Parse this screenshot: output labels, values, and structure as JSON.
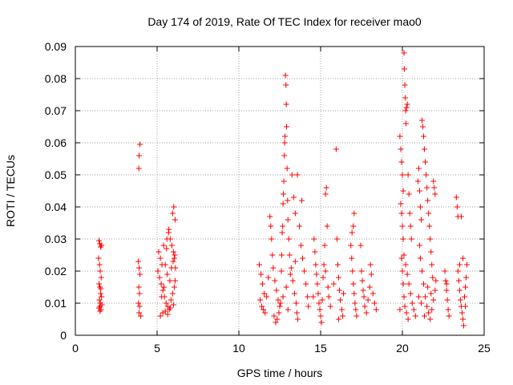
{
  "chart_data": {
    "type": "scatter",
    "title": "Day 174 of 2019, Rate Of TEC Index for receiver mao0",
    "xlabel": "GPS time / hours",
    "ylabel": "ROTI / TECUs",
    "xlim": [
      0,
      25
    ],
    "ylim": [
      0,
      0.09
    ],
    "grid": true,
    "x_ticks": [
      0,
      5,
      10,
      15,
      20,
      25
    ],
    "x_tick_labels": [
      "0",
      "5",
      "10",
      "15",
      "20",
      "25"
    ],
    "y_ticks": [
      0,
      0.01,
      0.02,
      0.03,
      0.04,
      0.05,
      0.06,
      0.07,
      0.08,
      0.09
    ],
    "y_tick_labels": [
      "0",
      "0.01",
      "0.02",
      "0.03",
      "0.04",
      "0.05",
      "0.06",
      "0.07",
      "0.08",
      "0.09"
    ],
    "marker": "+",
    "marker_color": "#ff0000",
    "series": [
      {
        "name": "ROTI",
        "points": [
          [
            1.45,
            0.0295
          ],
          [
            1.5,
            0.0285
          ],
          [
            1.55,
            0.0275
          ],
          [
            1.6,
            0.028
          ],
          [
            1.42,
            0.024
          ],
          [
            1.48,
            0.022
          ],
          [
            1.52,
            0.02
          ],
          [
            1.58,
            0.018
          ],
          [
            1.45,
            0.016
          ],
          [
            1.5,
            0.015
          ],
          [
            1.55,
            0.013
          ],
          [
            1.6,
            0.012
          ],
          [
            1.47,
            0.011
          ],
          [
            1.53,
            0.01
          ],
          [
            1.5,
            0.009
          ],
          [
            1.57,
            0.008
          ],
          [
            1.44,
            0.0085
          ],
          [
            1.62,
            0.0095
          ],
          [
            1.51,
            0.0075
          ],
          [
            1.56,
            0.0145
          ],
          [
            3.85,
            0.023
          ],
          [
            3.9,
            0.021
          ],
          [
            3.95,
            0.019
          ],
          [
            3.88,
            0.015
          ],
          [
            3.92,
            0.013
          ],
          [
            3.86,
            0.01
          ],
          [
            3.93,
            0.009
          ],
          [
            3.9,
            0.007
          ],
          [
            4.0,
            0.006
          ],
          [
            3.95,
            0.0595
          ],
          [
            3.9,
            0.056
          ],
          [
            3.88,
            0.052
          ],
          [
            5.1,
            0.026
          ],
          [
            5.2,
            0.024
          ],
          [
            5.3,
            0.022
          ],
          [
            5.05,
            0.02
          ],
          [
            5.15,
            0.018
          ],
          [
            5.25,
            0.016
          ],
          [
            5.35,
            0.014
          ],
          [
            5.45,
            0.012
          ],
          [
            5.55,
            0.01
          ],
          [
            5.65,
            0.009
          ],
          [
            5.75,
            0.008
          ],
          [
            5.85,
            0.011
          ],
          [
            5.95,
            0.013
          ],
          [
            6.05,
            0.015
          ],
          [
            6.1,
            0.017
          ],
          [
            5.4,
            0.028
          ],
          [
            5.6,
            0.03
          ],
          [
            5.7,
            0.032
          ],
          [
            5.8,
            0.03
          ],
          [
            5.9,
            0.028
          ],
          [
            6.0,
            0.026
          ],
          [
            6.05,
            0.024
          ],
          [
            5.5,
            0.022
          ],
          [
            5.62,
            0.019
          ],
          [
            5.78,
            0.017
          ],
          [
            5.88,
            0.021
          ],
          [
            5.98,
            0.023
          ],
          [
            6.08,
            0.025
          ],
          [
            5.72,
            0.033
          ],
          [
            5.95,
            0.038
          ],
          [
            6.02,
            0.04
          ],
          [
            6.1,
            0.036
          ],
          [
            5.2,
            0.006
          ],
          [
            5.35,
            0.007
          ],
          [
            5.5,
            0.0075
          ],
          [
            5.65,
            0.0065
          ],
          [
            5.8,
            0.0085
          ],
          [
            6.0,
            0.0095
          ],
          [
            5.28,
            0.012
          ],
          [
            5.42,
            0.015
          ],
          [
            5.58,
            0.027
          ],
          [
            6.12,
            0.021
          ],
          [
            11.25,
            0.022
          ],
          [
            11.35,
            0.019
          ],
          [
            11.45,
            0.016
          ],
          [
            11.55,
            0.013
          ],
          [
            11.3,
            0.011
          ],
          [
            11.4,
            0.009
          ],
          [
            11.5,
            0.008
          ],
          [
            11.6,
            0.007
          ],
          [
            11.7,
            0.012
          ],
          [
            11.8,
            0.018
          ],
          [
            11.9,
            0.037
          ],
          [
            11.95,
            0.034
          ],
          [
            12.0,
            0.03
          ],
          [
            12.05,
            0.025
          ],
          [
            12.1,
            0.021
          ],
          [
            12.2,
            0.017
          ],
          [
            12.3,
            0.014
          ],
          [
            12.4,
            0.011
          ],
          [
            12.5,
            0.009
          ],
          [
            12.15,
            0.006
          ],
          [
            12.25,
            0.004
          ],
          [
            12.35,
            0.005
          ],
          [
            12.45,
            0.007
          ],
          [
            12.55,
            0.01
          ],
          [
            12.6,
            0.02
          ],
          [
            12.62,
            0.025
          ],
          [
            12.65,
            0.032
          ],
          [
            12.68,
            0.034
          ],
          [
            12.7,
            0.041
          ],
          [
            12.72,
            0.044
          ],
          [
            12.75,
            0.048
          ],
          [
            12.78,
            0.056
          ],
          [
            12.8,
            0.06
          ],
          [
            12.82,
            0.062
          ],
          [
            12.85,
            0.081
          ],
          [
            12.88,
            0.078
          ],
          [
            12.9,
            0.072
          ],
          [
            12.92,
            0.065
          ],
          [
            12.95,
            0.052
          ],
          [
            12.98,
            0.042
          ],
          [
            13.0,
            0.036
          ],
          [
            13.05,
            0.03
          ],
          [
            13.1,
            0.025
          ],
          [
            13.2,
            0.021
          ],
          [
            13.3,
            0.017
          ],
          [
            13.4,
            0.013
          ],
          [
            13.5,
            0.01
          ],
          [
            13.55,
            0.007
          ],
          [
            13.6,
            0.005
          ],
          [
            13.25,
            0.05
          ],
          [
            13.35,
            0.043
          ],
          [
            13.45,
            0.038
          ],
          [
            13.58,
            0.05
          ],
          [
            13.7,
            0.034
          ],
          [
            13.8,
            0.028
          ],
          [
            13.9,
            0.024
          ],
          [
            14.0,
            0.02
          ],
          [
            14.1,
            0.016
          ],
          [
            14.2,
            0.012
          ],
          [
            14.25,
            0.009
          ],
          [
            13.85,
            0.042
          ],
          [
            13.15,
            0.019
          ],
          [
            12.9,
            0.015
          ],
          [
            12.7,
            0.012
          ],
          [
            13.0,
            0.008
          ],
          [
            13.45,
            0.023
          ],
          [
            14.6,
            0.03
          ],
          [
            14.65,
            0.026
          ],
          [
            14.7,
            0.022
          ],
          [
            14.75,
            0.019
          ],
          [
            14.8,
            0.016
          ],
          [
            14.85,
            0.013
          ],
          [
            14.9,
            0.01
          ],
          [
            14.95,
            0.008
          ],
          [
            15.0,
            0.006
          ],
          [
            15.05,
            0.004
          ],
          [
            15.1,
            0.011
          ],
          [
            15.15,
            0.018
          ],
          [
            15.2,
            0.022
          ],
          [
            15.25,
            0.028
          ],
          [
            15.3,
            0.044
          ],
          [
            15.35,
            0.046
          ],
          [
            15.4,
            0.034
          ],
          [
            15.3,
            0.02
          ],
          [
            14.55,
            0.012
          ],
          [
            15.45,
            0.015
          ],
          [
            15.5,
            0.012
          ],
          [
            15.6,
            0.009
          ],
          [
            15.95,
            0.058
          ],
          [
            16.0,
            0.03
          ],
          [
            16.05,
            0.022
          ],
          [
            16.1,
            0.018
          ],
          [
            16.15,
            0.014
          ],
          [
            16.2,
            0.011
          ],
          [
            16.3,
            0.008
          ],
          [
            16.35,
            0.006
          ],
          [
            16.1,
            0.005
          ],
          [
            15.8,
            0.016
          ],
          [
            16.4,
            0.013
          ],
          [
            16.85,
            0.028
          ],
          [
            16.9,
            0.024
          ],
          [
            16.95,
            0.02
          ],
          [
            17.0,
            0.016
          ],
          [
            17.05,
            0.013
          ],
          [
            17.1,
            0.01
          ],
          [
            17.15,
            0.008
          ],
          [
            17.0,
            0.034
          ],
          [
            17.05,
            0.038
          ],
          [
            16.92,
            0.032
          ],
          [
            17.2,
            0.006
          ],
          [
            17.5,
            0.02
          ],
          [
            17.55,
            0.017
          ],
          [
            17.6,
            0.014
          ],
          [
            17.65,
            0.012
          ],
          [
            17.7,
            0.009
          ],
          [
            17.8,
            0.007
          ],
          [
            17.9,
            0.011
          ],
          [
            18.0,
            0.015
          ],
          [
            18.1,
            0.019
          ],
          [
            18.2,
            0.013
          ],
          [
            18.3,
            0.01
          ],
          [
            18.4,
            0.008
          ],
          [
            17.45,
            0.028
          ],
          [
            18.05,
            0.022
          ],
          [
            19.85,
            0.062
          ],
          [
            19.9,
            0.058
          ],
          [
            19.95,
            0.054
          ],
          [
            20.0,
            0.05
          ],
          [
            20.05,
            0.045
          ],
          [
            20.1,
            0.088
          ],
          [
            20.12,
            0.083
          ],
          [
            20.15,
            0.078
          ],
          [
            20.18,
            0.074
          ],
          [
            20.2,
            0.07
          ],
          [
            20.22,
            0.066
          ],
          [
            20.25,
            0.071
          ],
          [
            20.3,
            0.072
          ],
          [
            20.35,
            0.05
          ],
          [
            20.4,
            0.044
          ],
          [
            20.45,
            0.038
          ],
          [
            20.5,
            0.034
          ],
          [
            20.55,
            0.03
          ],
          [
            19.9,
            0.041
          ],
          [
            19.95,
            0.038
          ],
          [
            20.0,
            0.034
          ],
          [
            20.05,
            0.03
          ],
          [
            20.1,
            0.025
          ],
          [
            20.2,
            0.022
          ],
          [
            20.3,
            0.019
          ],
          [
            20.4,
            0.016
          ],
          [
            20.5,
            0.013
          ],
          [
            20.6,
            0.01
          ],
          [
            20.7,
            0.008
          ],
          [
            20.8,
            0.006
          ],
          [
            19.95,
            0.024
          ],
          [
            20.0,
            0.02
          ],
          [
            20.05,
            0.016
          ],
          [
            20.1,
            0.012
          ],
          [
            20.15,
            0.009
          ],
          [
            19.85,
            0.008
          ],
          [
            20.25,
            0.007
          ],
          [
            20.35,
            0.005
          ],
          [
            20.95,
            0.048
          ],
          [
            21.0,
            0.052
          ],
          [
            21.05,
            0.045
          ],
          [
            21.1,
            0.04
          ],
          [
            21.15,
            0.036
          ],
          [
            21.2,
            0.067
          ],
          [
            21.25,
            0.065
          ],
          [
            21.3,
            0.062
          ],
          [
            21.35,
            0.058
          ],
          [
            21.4,
            0.054
          ],
          [
            21.45,
            0.05
          ],
          [
            21.5,
            0.046
          ],
          [
            21.55,
            0.042
          ],
          [
            21.6,
            0.038
          ],
          [
            21.65,
            0.034
          ],
          [
            21.7,
            0.03
          ],
          [
            21.75,
            0.026
          ],
          [
            21.8,
            0.022
          ],
          [
            21.85,
            0.018
          ],
          [
            21.9,
            0.048
          ],
          [
            21.95,
            0.046
          ],
          [
            22.0,
            0.044
          ],
          [
            21.05,
            0.028
          ],
          [
            21.1,
            0.024
          ],
          [
            21.2,
            0.02
          ],
          [
            21.3,
            0.016
          ],
          [
            21.4,
            0.012
          ],
          [
            21.5,
            0.009
          ],
          [
            21.6,
            0.007
          ],
          [
            21.7,
            0.005
          ],
          [
            21.8,
            0.008
          ],
          [
            21.9,
            0.011
          ],
          [
            22.0,
            0.014
          ],
          [
            22.05,
            0.017
          ],
          [
            21.0,
            0.012
          ],
          [
            21.15,
            0.01
          ],
          [
            21.35,
            0.006
          ],
          [
            21.55,
            0.015
          ],
          [
            21.75,
            0.013
          ],
          [
            22.6,
            0.02
          ],
          [
            22.65,
            0.017
          ],
          [
            22.7,
            0.014
          ],
          [
            22.75,
            0.011
          ],
          [
            22.8,
            0.008
          ],
          [
            22.85,
            0.006
          ],
          [
            22.7,
            0.016
          ],
          [
            23.3,
            0.043
          ],
          [
            23.35,
            0.04
          ],
          [
            23.4,
            0.037
          ],
          [
            23.6,
            0.037
          ],
          [
            23.4,
            0.02
          ],
          [
            23.45,
            0.017
          ],
          [
            23.5,
            0.014
          ],
          [
            23.55,
            0.011
          ],
          [
            23.6,
            0.009
          ],
          [
            23.65,
            0.007
          ],
          [
            23.7,
            0.005
          ],
          [
            23.75,
            0.003
          ],
          [
            23.8,
            0.012
          ],
          [
            23.85,
            0.015
          ],
          [
            23.9,
            0.018
          ],
          [
            23.95,
            0.022
          ],
          [
            23.85,
            0.009
          ],
          [
            23.5,
            0.022
          ],
          [
            23.7,
            0.024
          ]
        ]
      }
    ]
  }
}
